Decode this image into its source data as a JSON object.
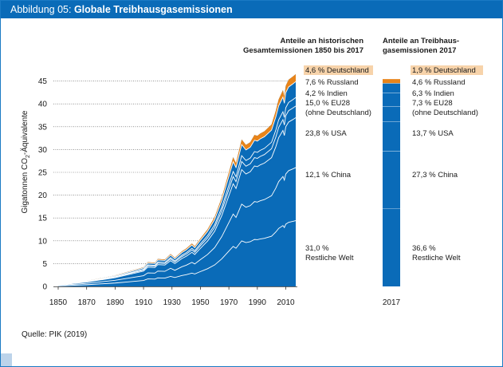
{
  "header": {
    "label": "Abbildung 05:",
    "title": "Globale Treibhausgasemissionen"
  },
  "source": "Quelle: PIK (2019)",
  "colors": {
    "area": "#0a6bb8",
    "area_light": "#1a7cc6",
    "divider": "#ffffff",
    "deutschland": "#e8841a",
    "highlight": "#f7d3aa",
    "grid": "#555555"
  },
  "chart_data": {
    "type": "area",
    "title": "Globale Treibhausgasemissionen",
    "ylabel_parts": [
      "Gigatonnen CO",
      "2",
      "-Äquivalente"
    ],
    "xlabel": "",
    "ylim": [
      0,
      48
    ],
    "xlim": [
      1850,
      2017
    ],
    "yticks": [
      0,
      5,
      10,
      15,
      20,
      25,
      30,
      35,
      40,
      45
    ],
    "xticks": [
      1850,
      1870,
      1890,
      1910,
      1930,
      1950,
      1970,
      1990,
      2010
    ],
    "x": [
      1850,
      1870,
      1890,
      1900,
      1910,
      1913,
      1918,
      1920,
      1925,
      1929,
      1932,
      1937,
      1940,
      1944,
      1946,
      1950,
      1955,
      1960,
      1965,
      1970,
      1973,
      1975,
      1979,
      1982,
      1985,
      1988,
      1990,
      1992,
      1995,
      2000,
      2003,
      2005,
      2008,
      2009,
      2010,
      2012,
      2015,
      2017
    ],
    "total": [
      0.4,
      1.2,
      2.4,
      3.3,
      4.2,
      5.3,
      5.2,
      6.0,
      5.9,
      7.1,
      6.3,
      7.7,
      8.3,
      9.4,
      8.8,
      10.5,
      12.5,
      15.2,
      19.5,
      25.0,
      28.3,
      27.0,
      32.2,
      31.0,
      31.6,
      33.2,
      33.0,
      33.5,
      34.0,
      35.5,
      38.5,
      41.0,
      43.0,
      41.6,
      44.0,
      45.3,
      46.0,
      46.5
    ],
    "boundaries_fraction_of_total": [
      0.31,
      0.56,
      0.795,
      0.85,
      0.89,
      0.965
    ],
    "history_panel": {
      "heading": [
        "Anteile an historischen",
        "Gesamtemissionen 1850 bis 2017"
      ],
      "labels": [
        {
          "lines": [
            "4,6 % Deutschland"
          ],
          "value": 4.6,
          "highlight": true
        },
        {
          "lines": [
            "7,6 % Russland"
          ],
          "value": 7.6
        },
        {
          "lines": [
            "4,2 % Indien"
          ],
          "value": 4.2
        },
        {
          "lines": [
            "15,0 % EU28",
            "(ohne Deutschland)"
          ],
          "value": 15.0
        },
        {
          "lines": [
            "23,8 % USA"
          ],
          "value": 23.8
        },
        {
          "lines": [
            "12,1 % China"
          ],
          "value": 12.1
        },
        {
          "lines": [
            "31,0 %",
            "Restliche Welt"
          ],
          "value": 31.0
        }
      ]
    },
    "bar_2017": {
      "category": "2017",
      "total": 46.5,
      "heading": [
        "Anteile an Treibhaus-",
        "gasemissionen 2017"
      ],
      "segments": [
        {
          "name": "Deutschland",
          "share": 1.9,
          "label": "1,9 % Deutschland",
          "highlight": true
        },
        {
          "name": "Russland",
          "share": 4.6,
          "label": "4,6 % Russland"
        },
        {
          "name": "Indien",
          "share": 6.3,
          "label": "6,3 % Indien"
        },
        {
          "name": "EU28",
          "share": 7.3,
          "label": "7,3 % EU28",
          "label2": "(ohne Deutschland)"
        },
        {
          "name": "USA",
          "share": 13.7,
          "label": "13,7 % USA"
        },
        {
          "name": "China",
          "share": 27.3,
          "label": "27,3 % China"
        },
        {
          "name": "Restliche Welt",
          "share": 36.6,
          "label": "36,6 %",
          "label2": "Restliche Welt"
        }
      ]
    }
  }
}
